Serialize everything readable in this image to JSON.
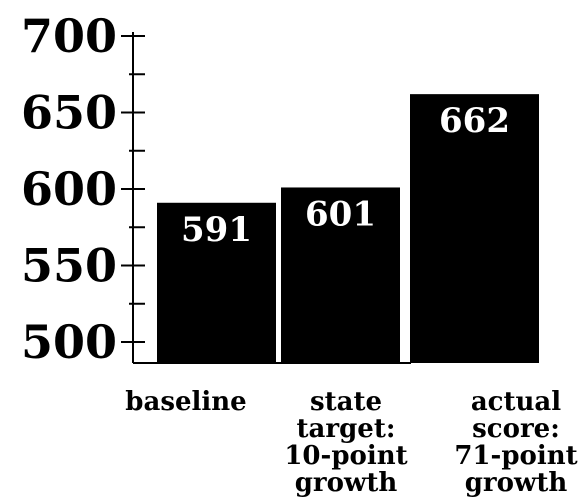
{
  "chart_data": {
    "type": "bar",
    "categories": [
      [
        "baseline"
      ],
      [
        "state",
        "target:",
        "10-point",
        "growth"
      ],
      [
        "actual",
        "score:",
        "71-point",
        "growth"
      ]
    ],
    "values": [
      591,
      601,
      662
    ],
    "data_labels": [
      "591",
      "601",
      "662"
    ],
    "ylim": [
      500,
      700
    ],
    "yticks": [
      500,
      550,
      600,
      650,
      700
    ],
    "ytick_labels": [
      "500",
      "550",
      "600",
      "650",
      "700"
    ],
    "minor_tick_step": 25,
    "title": "",
    "xlabel": "",
    "ylabel": "",
    "grid": false,
    "legend": "none",
    "colors": {
      "bar": "#000000",
      "bar_label": "#ffffff",
      "axis": "#000000",
      "background": "#ffffff"
    }
  }
}
